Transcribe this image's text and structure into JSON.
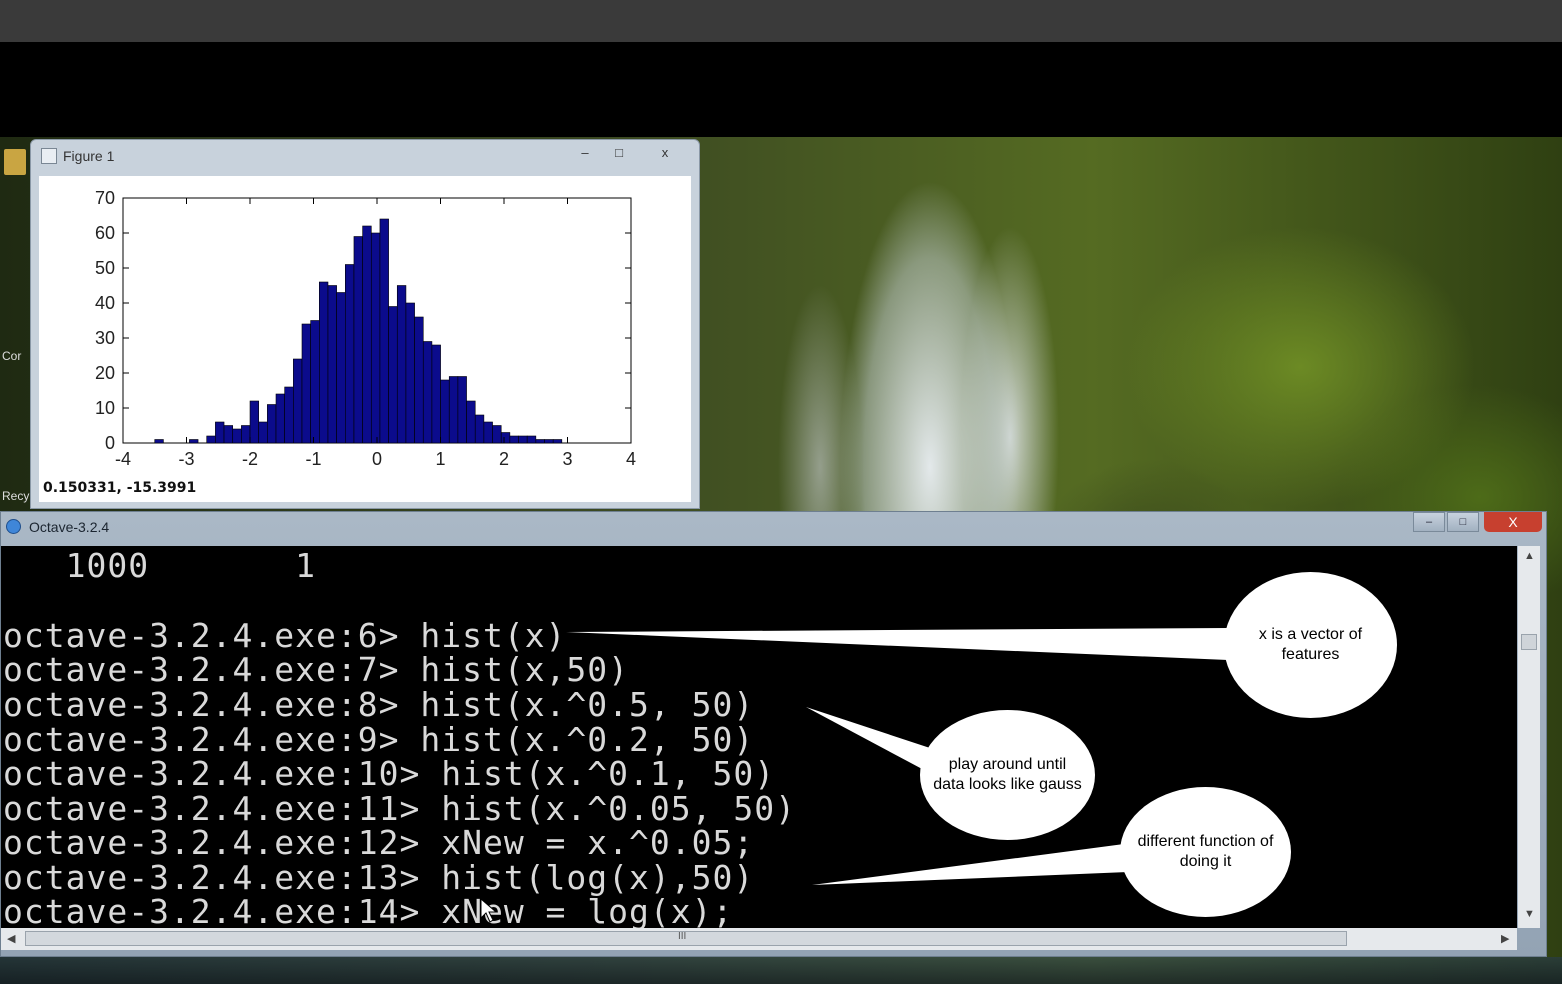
{
  "desktop": {
    "icon_labels": [
      "Cor",
      "Recy"
    ]
  },
  "figure_window": {
    "title": "Figure 1",
    "controls": {
      "minimize": "–",
      "maximize": "□",
      "close": "x"
    },
    "coords_readout": "0.150331, -15.3991",
    "chart_data": {
      "type": "bar",
      "title": "",
      "xlabel": "",
      "ylabel": "",
      "xlim": [
        -4,
        4
      ],
      "ylim": [
        0,
        70
      ],
      "x_ticks": [
        -4,
        -3,
        -2,
        -1,
        0,
        1,
        2,
        3,
        4
      ],
      "y_ticks": [
        0,
        10,
        20,
        30,
        40,
        50,
        60,
        70
      ],
      "bin_start": -3.5,
      "bin_width": 0.1364,
      "values": [
        1,
        0,
        0,
        0,
        1,
        0,
        2,
        6,
        5,
        4,
        5,
        12,
        6,
        11,
        14,
        16,
        24,
        34,
        35,
        46,
        45,
        43,
        51,
        59,
        62,
        60,
        64,
        39,
        45,
        40,
        36,
        29,
        28,
        18,
        19,
        19,
        12,
        8,
        6,
        5,
        3,
        2,
        2,
        2,
        1,
        1,
        1
      ],
      "color": "#0b0b8c"
    }
  },
  "octave_window": {
    "title": "Octave-3.2.4",
    "controls": {
      "minimize": "–",
      "maximize": "□",
      "close": "X"
    },
    "console_lines": [
      "   1000       1",
      "",
      "octave-3.2.4.exe:6> hist(x)",
      "octave-3.2.4.exe:7> hist(x,50)",
      "octave-3.2.4.exe:8> hist(x.^0.5, 50)",
      "octave-3.2.4.exe:9> hist(x.^0.2, 50)",
      "octave-3.2.4.exe:10> hist(x.^0.1, 50)",
      "octave-3.2.4.exe:11> hist(x.^0.05, 50)",
      "octave-3.2.4.exe:12> xNew = x.^0.05;",
      "octave-3.2.4.exe:13> hist(log(x),50)",
      "octave-3.2.4.exe:14> xNew = log(x);"
    ],
    "scroll_marker": "III"
  },
  "annotations": [
    {
      "text_line1": "x is a vector of",
      "text_line2": "features"
    },
    {
      "text_line1": "play around until",
      "text_line2": "data looks like gauss"
    },
    {
      "text_line1": "different function of",
      "text_line2": "doing it"
    }
  ]
}
